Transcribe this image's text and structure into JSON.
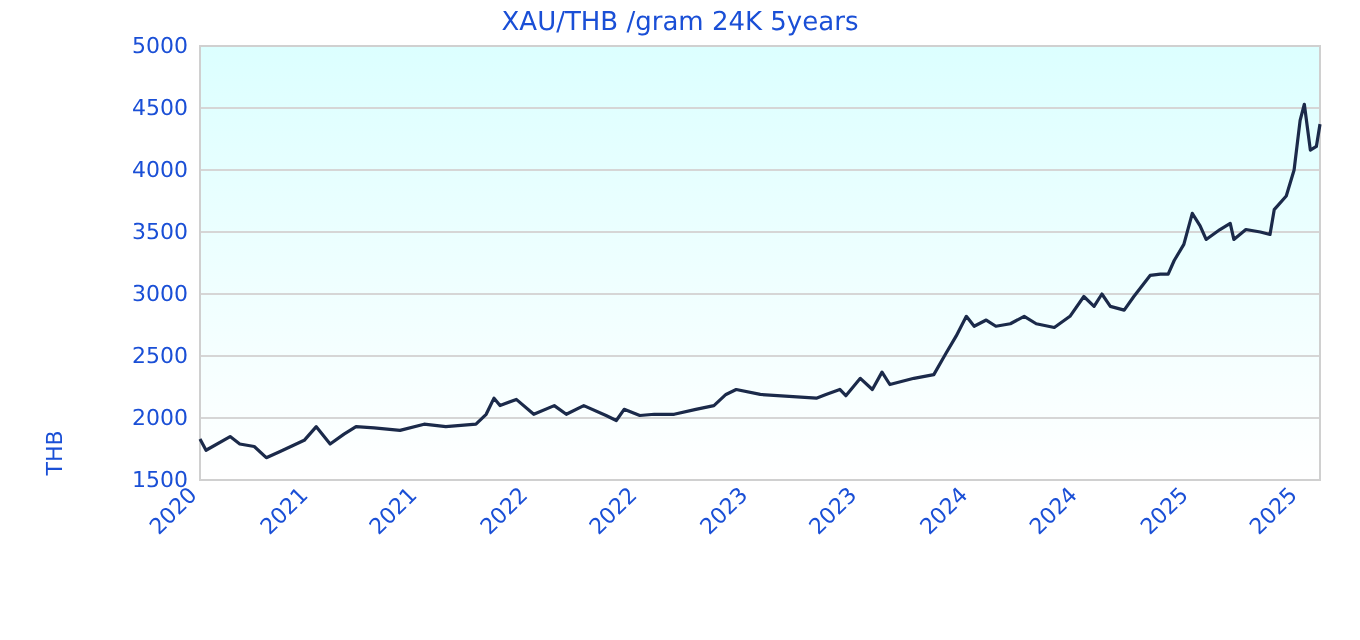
{
  "chart_data": {
    "type": "line",
    "title": "XAU/THB /gram 24K 5years",
    "ylabel": "THB",
    "grid": "y",
    "marker": "none",
    "line_style": "solid",
    "xlim": [
      "2020-07-01",
      "2025-08-03"
    ],
    "xticks": [
      {
        "value": "2020-07-01",
        "label": "2020"
      },
      {
        "value": "2021-01-01",
        "label": "2021"
      },
      {
        "value": "2021-07-01",
        "label": "2021"
      },
      {
        "value": "2022-01-01",
        "label": "2022"
      },
      {
        "value": "2022-07-01",
        "label": "2022"
      },
      {
        "value": "2023-01-01",
        "label": "2023"
      },
      {
        "value": "2023-07-01",
        "label": "2023"
      },
      {
        "value": "2024-01-01",
        "label": "2024"
      },
      {
        "value": "2024-07-01",
        "label": "2024"
      },
      {
        "value": "2025-01-01",
        "label": "2025"
      },
      {
        "value": "2025-07-01",
        "label": "2025"
      }
    ],
    "ylim": [
      1500,
      5000
    ],
    "yticks": [
      1500,
      2000,
      2500,
      3000,
      3500,
      4000,
      4500,
      5000
    ],
    "series": [
      {
        "color": "#1b2a4a",
        "x": [
          "2020-07-01",
          "2020-07-11",
          "2020-08-20",
          "2020-09-05",
          "2020-09-29",
          "2020-10-19",
          "2020-11-11",
          "2020-12-21",
          "2021-01-10",
          "2021-02-02",
          "2021-02-25",
          "2021-03-17",
          "2021-04-16",
          "2021-05-29",
          "2021-07-08",
          "2021-08-13",
          "2021-10-02",
          "2021-10-19",
          "2021-11-01",
          "2021-11-11",
          "2021-12-08",
          "2022-01-06",
          "2022-02-09",
          "2022-03-01",
          "2022-03-30",
          "2022-05-06",
          "2022-05-23",
          "2022-06-05",
          "2022-07-01",
          "2022-07-25",
          "2022-08-27",
          "2022-10-02",
          "2022-11-01",
          "2022-11-21",
          "2022-12-08",
          "2023-01-17",
          "2023-04-20",
          "2023-05-06",
          "2023-05-29",
          "2023-06-08",
          "2023-07-02",
          "2023-07-22",
          "2023-08-07",
          "2023-08-20",
          "2023-09-29",
          "2023-11-01",
          "2023-11-21",
          "2023-12-08",
          "2023-12-25",
          "2024-01-07",
          "2024-01-27",
          "2024-02-12",
          "2024-03-07",
          "2024-03-30",
          "2024-04-19",
          "2024-05-19",
          "2024-06-14",
          "2024-07-07",
          "2024-07-24",
          "2024-08-06",
          "2024-08-20",
          "2024-09-12",
          "2024-09-28",
          "2024-10-25",
          "2024-11-11",
          "2024-11-24",
          "2024-12-04",
          "2024-12-20",
          "2025-01-03",
          "2025-01-16",
          "2025-01-26",
          "2025-02-18",
          "2025-03-07",
          "2025-03-13",
          "2025-04-02",
          "2025-04-26",
          "2025-05-12",
          "2025-05-19",
          "2025-06-08",
          "2025-06-21",
          "2025-07-01",
          "2025-07-08",
          "2025-07-18",
          "2025-07-28",
          "2025-08-03"
        ],
        "values": [
          1830,
          1740,
          1850,
          1790,
          1770,
          1680,
          1730,
          1820,
          1930,
          1790,
          1870,
          1930,
          1920,
          1900,
          1950,
          1930,
          1950,
          2030,
          2160,
          2100,
          2150,
          2030,
          2100,
          2030,
          2100,
          2020,
          1980,
          2070,
          2020,
          2030,
          2030,
          2070,
          2100,
          2190,
          2230,
          2190,
          2160,
          2190,
          2230,
          2180,
          2320,
          2230,
          2370,
          2270,
          2320,
          2350,
          2520,
          2660,
          2820,
          2740,
          2790,
          2740,
          2760,
          2820,
          2760,
          2730,
          2820,
          2980,
          2900,
          3000,
          2900,
          2870,
          2980,
          3150,
          3160,
          3160,
          3270,
          3400,
          3650,
          3550,
          3440,
          3520,
          3570,
          3440,
          3520,
          3500,
          3480,
          3680,
          3790,
          4000,
          4400,
          4530,
          4160,
          4190,
          4370
        ]
      }
    ]
  }
}
